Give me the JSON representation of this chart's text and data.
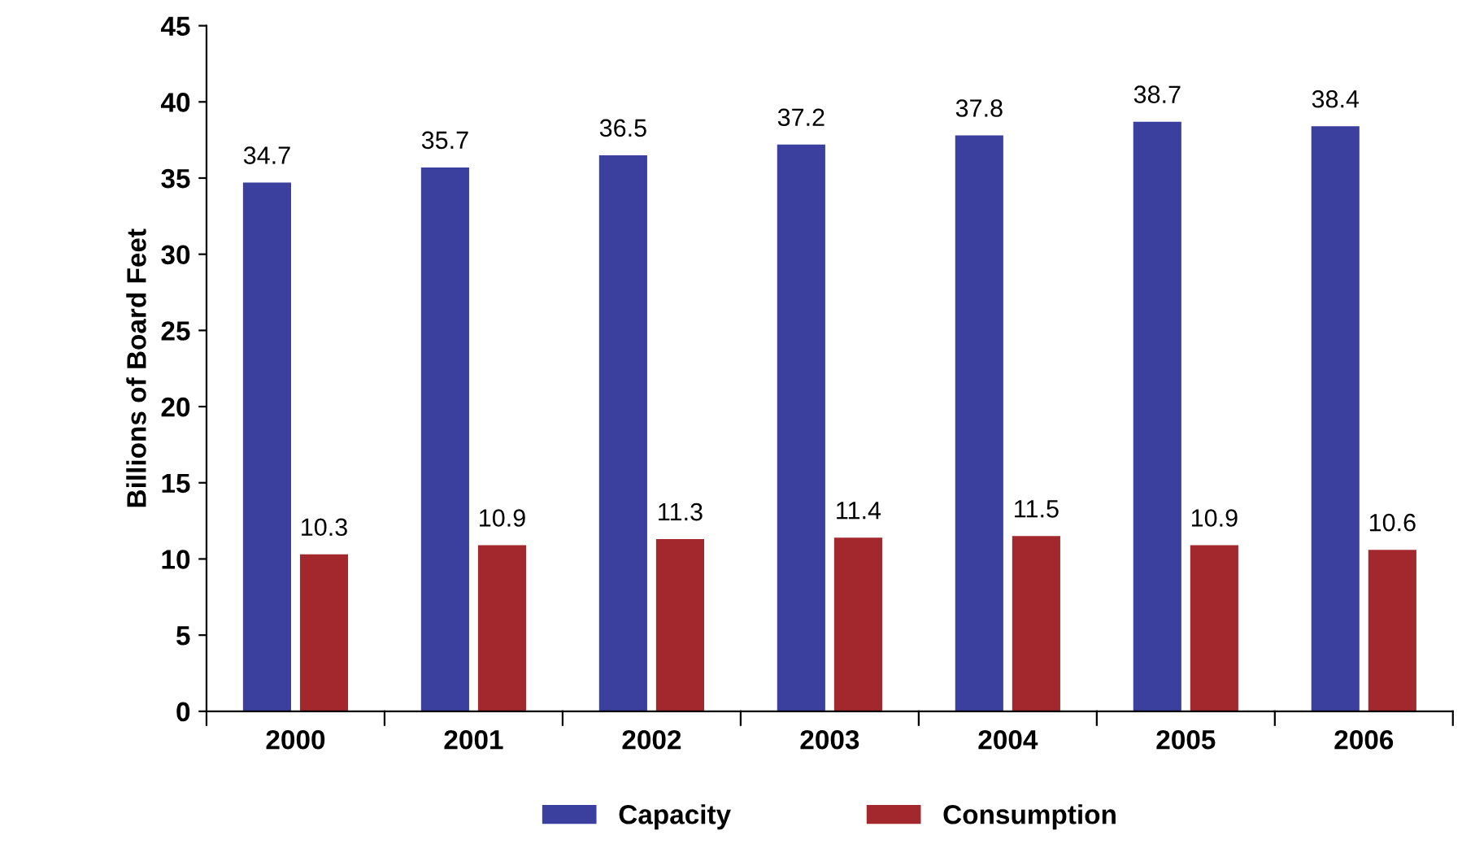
{
  "chart_data": {
    "type": "bar",
    "ylabel": "Billions of Board Feet",
    "categories": [
      "2000",
      "2001",
      "2002",
      "2003",
      "2004",
      "2005",
      "2006"
    ],
    "series": [
      {
        "name": "Capacity",
        "color": "#3b3f9e",
        "values": [
          34.7,
          35.7,
          36.5,
          37.2,
          37.8,
          38.7,
          38.4
        ]
      },
      {
        "name": "Consumption",
        "color": "#a3282d",
        "values": [
          10.3,
          10.9,
          11.3,
          11.4,
          11.5,
          10.9,
          10.6
        ]
      }
    ],
    "ylim": [
      0,
      45
    ],
    "yticks": [
      0,
      5,
      10,
      15,
      20,
      25,
      30,
      35,
      40,
      45
    ],
    "grid": false,
    "legend": "bottom",
    "data_labels": true
  }
}
